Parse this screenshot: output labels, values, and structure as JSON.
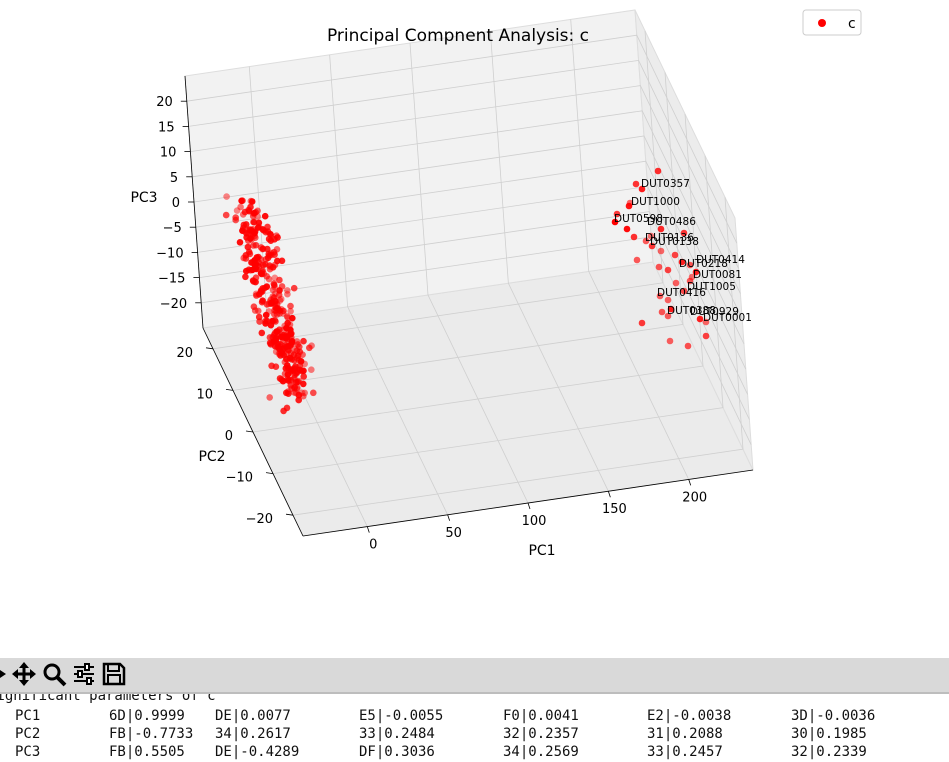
{
  "chart_data": {
    "type": "scatter",
    "title": "Principal Compnent Analysis: c",
    "xlabel": "PC1",
    "ylabel": "PC2",
    "zlabel": "PC3",
    "x_ticks": [
      "0",
      "50",
      "100",
      "150",
      "200"
    ],
    "y_ticks": [
      "−20",
      "−10",
      "0",
      "10",
      "20"
    ],
    "z_ticks": [
      "−20",
      "−15",
      "−10",
      "−5",
      "0",
      "5",
      "10",
      "15",
      "20"
    ],
    "legend": {
      "label": "c",
      "position": "top-right"
    },
    "series_color": "#ff0000",
    "grid": true,
    "projection": "3d",
    "point_labels": [
      "DUT0357",
      "DUT1000",
      "DUT0486",
      "DUT0598",
      "DUT0136",
      "DUT0138",
      "DUT0414",
      "DUT0218",
      "DUT0081",
      "DUT1005",
      "DUT0416",
      "DUT0388",
      "DUT0929",
      "DUT0001"
    ]
  },
  "toolbar": {
    "buttons": [
      {
        "name": "forward-icon"
      },
      {
        "name": "pan-icon"
      },
      {
        "name": "zoom-icon"
      },
      {
        "name": "configure-subplots-icon"
      },
      {
        "name": "save-icon"
      }
    ]
  },
  "console": {
    "header": "Significant parameters of c",
    "rows": [
      {
        "label": "PC1",
        "cells": [
          "6D|0.9999",
          "DE|0.0077",
          "E5|-0.0055",
          "F0|0.0041",
          "E2|-0.0038",
          "3D|-0.0036"
        ]
      },
      {
        "label": "PC2",
        "cells": [
          "FB|-0.7733",
          "34|0.2617",
          "33|0.2484",
          "32|0.2357",
          "31|0.2088",
          "30|0.1985"
        ]
      },
      {
        "label": "PC3",
        "cells": [
          "FB|0.5505",
          "DE|-0.4289",
          "DF|0.3036",
          "34|0.2569",
          "33|0.2457",
          "32|0.2339"
        ]
      }
    ]
  }
}
